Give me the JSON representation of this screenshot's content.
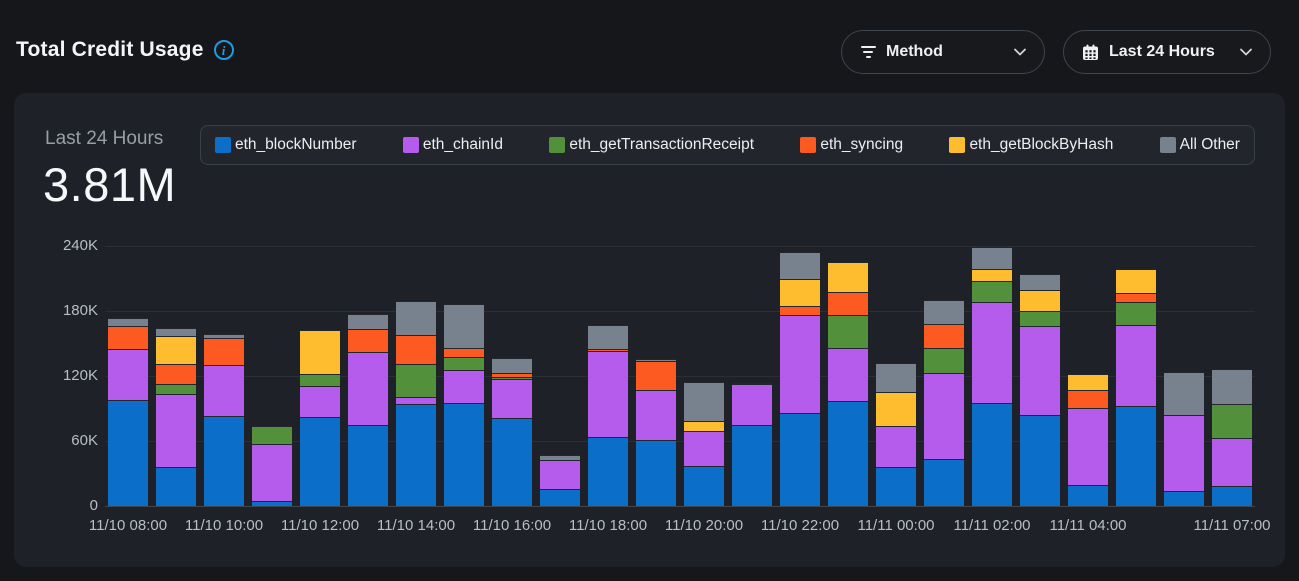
{
  "header": {
    "title": "Total Credit Usage"
  },
  "filters": {
    "method_label": "Method",
    "range_label": "Last 24 Hours"
  },
  "summary": {
    "period_label": "Last 24 Hours",
    "total_value": "3.81M"
  },
  "chart_data": {
    "type": "bar",
    "stacked": true,
    "title": "Total Credit Usage — Last 24 Hours",
    "unit_note": "values in thousands of credits (K)",
    "ylim": [
      0,
      240
    ],
    "ytick_labels": [
      "0",
      "60K",
      "120K",
      "180K",
      "240K"
    ],
    "ytick_values": [
      0,
      60,
      120,
      180,
      240
    ],
    "grid": true,
    "legend_position": "top",
    "categories": [
      "11/10 08:00",
      "11/10 09:00",
      "11/10 10:00",
      "11/10 11:00",
      "11/10 12:00",
      "11/10 13:00",
      "11/10 14:00",
      "11/10 15:00",
      "11/10 16:00",
      "11/10 17:00",
      "11/10 18:00",
      "11/10 19:00",
      "11/10 20:00",
      "11/10 21:00",
      "11/10 22:00",
      "11/10 23:00",
      "11/11 00:00",
      "11/11 01:00",
      "11/11 02:00",
      "11/11 03:00",
      "11/11 04:00",
      "11/11 05:00",
      "11/11 06:00",
      "11/11 07:00"
    ],
    "xticks": [
      {
        "index": 0,
        "label": "11/10 08:00"
      },
      {
        "index": 2,
        "label": "11/10 10:00"
      },
      {
        "index": 4,
        "label": "11/10 12:00"
      },
      {
        "index": 6,
        "label": "11/10 14:00"
      },
      {
        "index": 8,
        "label": "11/10 16:00"
      },
      {
        "index": 10,
        "label": "11/10 18:00"
      },
      {
        "index": 12,
        "label": "11/10 20:00"
      },
      {
        "index": 14,
        "label": "11/10 22:00"
      },
      {
        "index": 16,
        "label": "11/11 00:00"
      },
      {
        "index": 18,
        "label": "11/11 02:00"
      },
      {
        "index": 20,
        "label": "11/11 04:00"
      },
      {
        "index": 23,
        "label": "11/11 07:00"
      }
    ],
    "series": [
      {
        "name": "eth_blockNumber",
        "color": "#0b6fc9",
        "values": [
          98,
          36,
          83,
          5,
          82,
          75,
          94,
          95,
          81,
          16,
          64,
          61,
          37,
          75,
          86,
          97,
          36,
          43,
          95,
          84,
          19,
          92,
          14,
          18
        ]
      },
      {
        "name": "eth_chainId",
        "color": "#b55ced",
        "values": [
          47,
          67,
          47,
          53,
          29,
          67,
          6,
          30,
          36,
          27,
          79,
          46,
          32,
          38,
          90,
          49,
          38,
          79,
          93,
          82,
          71,
          75,
          70,
          44
        ]
      },
      {
        "name": "eth_getTransactionReceipt",
        "color": "#53903c",
        "values": [
          0,
          9,
          0,
          17,
          11,
          0,
          30,
          12,
          2,
          0,
          0,
          0,
          0,
          1,
          0,
          30,
          0,
          23,
          19,
          14,
          0,
          21,
          0,
          31
        ]
      },
      {
        "name": "eth_syncing",
        "color": "#fd5a22",
        "values": [
          21,
          18,
          25,
          0,
          0,
          21,
          27,
          8,
          4,
          0,
          2,
          27,
          0,
          0,
          8,
          21,
          0,
          22,
          0,
          0,
          17,
          8,
          0,
          0
        ]
      },
      {
        "name": "eth_getBlockByHash",
        "color": "#fdbd2e",
        "values": [
          0,
          26,
          0,
          0,
          41,
          0,
          0,
          0,
          0,
          0,
          0,
          0,
          9,
          0,
          25,
          28,
          31,
          0,
          11,
          19,
          15,
          22,
          0,
          0
        ]
      },
      {
        "name": "All Other",
        "color": "#78818e",
        "values": [
          7,
          7,
          4,
          0,
          0,
          14,
          31,
          41,
          14,
          5,
          22,
          2,
          36,
          0,
          25,
          0,
          27,
          22,
          20,
          15,
          0,
          0,
          40,
          32
        ]
      }
    ]
  },
  "icons": {
    "info": "info-icon",
    "filter": "filter-icon",
    "calendar": "calendar-icon",
    "chevron_down": "chevron-down-icon"
  }
}
